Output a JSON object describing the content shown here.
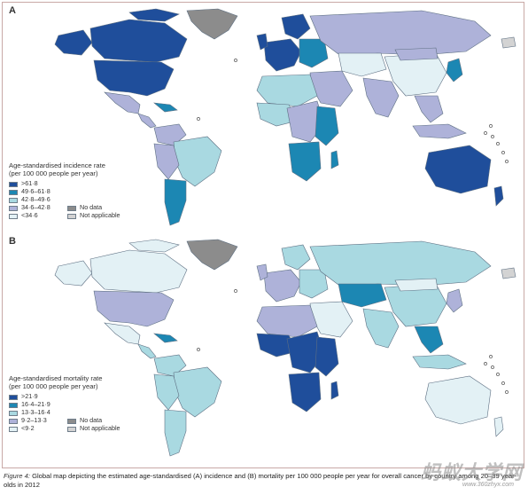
{
  "colors": {
    "dark": "#1f4e9b",
    "teal": "#1c87b3",
    "light": "#a9d9e1",
    "lavender": "#aeb2d9",
    "pale": "#e3f1f5",
    "nodata": "#8c8c8c",
    "notapp": "#d3d3d3",
    "stroke": "#5d6f82"
  },
  "panel_a": {
    "letter": "A",
    "legend_title": "Age-standardised incidence rate\n(per 100 000 people per year)",
    "classes": [
      {
        "label": ">61·8",
        "color": "#1f4e9b"
      },
      {
        "label": "49·6–61·8",
        "color": "#1c87b3"
      },
      {
        "label": "42·8–49·6",
        "color": "#a9d9e1"
      },
      {
        "label": "34·6–42·8",
        "color": "#aeb2d9"
      },
      {
        "label": "<34·6",
        "color": "#e3f1f5"
      }
    ],
    "extra": [
      {
        "label": "No data",
        "color": "#8c8c8c"
      },
      {
        "label": "Not applicable",
        "color": "#d3d3d3"
      }
    ]
  },
  "panel_b": {
    "letter": "B",
    "legend_title": "Age-standardised mortality rate\n(per 100 000 people per year)",
    "classes": [
      {
        "label": ">21·9",
        "color": "#1f4e9b"
      },
      {
        "label": "16·4–21·9",
        "color": "#1c87b3"
      },
      {
        "label": "13·3–16·4",
        "color": "#a9d9e1"
      },
      {
        "label": "9·2–13·3",
        "color": "#aeb2d9"
      },
      {
        "label": "<9·2",
        "color": "#e3f1f5"
      }
    ],
    "extra": [
      {
        "label": "No data",
        "color": "#8c8c8c"
      },
      {
        "label": "Not applicable",
        "color": "#d3d3d3"
      }
    ]
  },
  "caption": {
    "figure_label": "Figure 4:",
    "text": " Global map depicting the estimated age-standardised (A) incidence and (B) mortality per 100 000 people per year for overall cancer by country among 20–39 year-olds in 2012"
  },
  "watermark": {
    "text": "蚂蚁大学网",
    "url": "www.360zhyx.com"
  }
}
